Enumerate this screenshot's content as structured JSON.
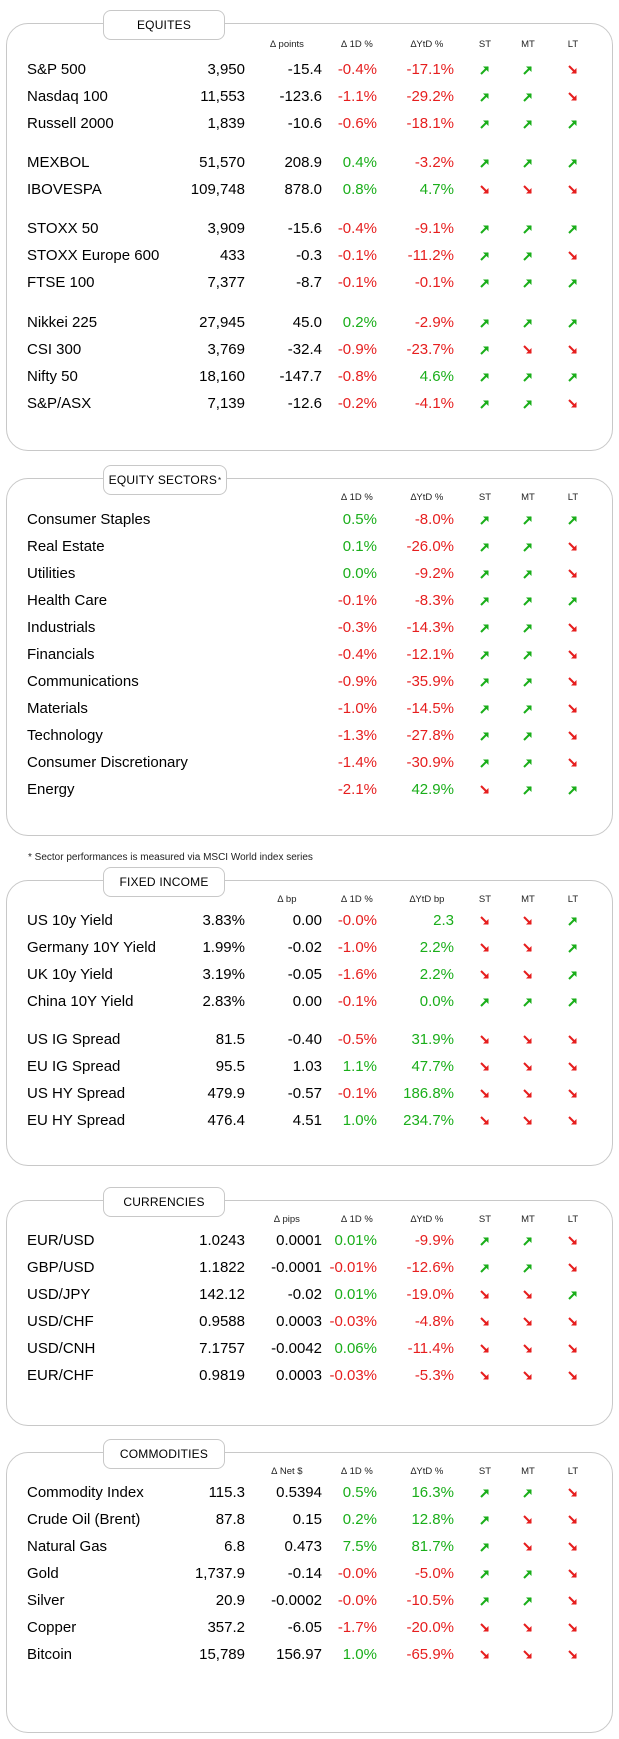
{
  "colors": {
    "up": "#1aae1a",
    "down": "#e61e1e",
    "border": "#c8c8c8"
  },
  "equities": {
    "title": "EQUITES",
    "headers": {
      "delta": "∆ points",
      "d1": "∆ 1D %",
      "ytd": "∆YtD %",
      "st": "ST",
      "mt": "MT",
      "lt": "LT"
    },
    "rows": [
      {
        "name": "S&P 500",
        "level": "3,950",
        "delta": "-15.4",
        "d1": "-0.4%",
        "ytd": "-17.1%",
        "st": "up",
        "mt": "up",
        "lt": "down"
      },
      {
        "name": "Nasdaq 100",
        "level": "11,553",
        "delta": "-123.6",
        "d1": "-1.1%",
        "ytd": "-29.2%",
        "st": "up",
        "mt": "up",
        "lt": "down"
      },
      {
        "name": "Russell 2000",
        "level": "1,839",
        "delta": "-10.6",
        "d1": "-0.6%",
        "ytd": "-18.1%",
        "st": "up",
        "mt": "up",
        "lt": "up"
      },
      {
        "name": "MEXBOL",
        "level": "51,570",
        "delta": "208.9",
        "d1": "0.4%",
        "ytd": "-3.2%",
        "st": "up",
        "mt": "up",
        "lt": "up"
      },
      {
        "name": "IBOVESPA",
        "level": "109,748",
        "delta": "878.0",
        "d1": "0.8%",
        "ytd": "4.7%",
        "st": "down",
        "mt": "down",
        "lt": "down"
      },
      {
        "name": "STOXX 50",
        "level": "3,909",
        "delta": "-15.6",
        "d1": "-0.4%",
        "ytd": "-9.1%",
        "st": "up",
        "mt": "up",
        "lt": "up"
      },
      {
        "name": "STOXX Europe 600",
        "level": "433",
        "delta": "-0.3",
        "d1": "-0.1%",
        "ytd": "-11.2%",
        "st": "up",
        "mt": "up",
        "lt": "down"
      },
      {
        "name": "FTSE 100",
        "level": "7,377",
        "delta": "-8.7",
        "d1": "-0.1%",
        "ytd": "-0.1%",
        "st": "up",
        "mt": "up",
        "lt": "up"
      },
      {
        "name": "Nikkei 225",
        "level": "27,945",
        "delta": "45.0",
        "d1": "0.2%",
        "ytd": "-2.9%",
        "st": "up",
        "mt": "up",
        "lt": "up"
      },
      {
        "name": "CSI 300",
        "level": "3,769",
        "delta": "-32.4",
        "d1": "-0.9%",
        "ytd": "-23.7%",
        "st": "up",
        "mt": "down",
        "lt": "down"
      },
      {
        "name": "Nifty  50",
        "level": "18,160",
        "delta": "-147.7",
        "d1": "-0.8%",
        "ytd": "4.6%",
        "st": "up",
        "mt": "up",
        "lt": "up"
      },
      {
        "name": "S&P/ASX",
        "level": "7,139",
        "delta": "-12.6",
        "d1": "-0.2%",
        "ytd": "-4.1%",
        "st": "up",
        "mt": "up",
        "lt": "down"
      }
    ]
  },
  "sectors": {
    "title": "EQUITY SECTORS",
    "title_mark": "*",
    "headers": {
      "d1": "∆ 1D %",
      "ytd": "∆YtD %",
      "st": "ST",
      "mt": "MT",
      "lt": "LT"
    },
    "note": "* Sector performances is measured via MSCI World index series",
    "rows": [
      {
        "name": "Consumer Staples",
        "d1": "0.5%",
        "ytd": "-8.0%",
        "st": "up",
        "mt": "up",
        "lt": "up"
      },
      {
        "name": "Real Estate",
        "d1": "0.1%",
        "ytd": "-26.0%",
        "st": "up",
        "mt": "up",
        "lt": "down"
      },
      {
        "name": "Utilities",
        "d1": "0.0%",
        "ytd": "-9.2%",
        "st": "up",
        "mt": "up",
        "lt": "down"
      },
      {
        "name": "Health Care",
        "d1": "-0.1%",
        "ytd": "-8.3%",
        "st": "up",
        "mt": "up",
        "lt": "up"
      },
      {
        "name": "Industrials",
        "d1": "-0.3%",
        "ytd": "-14.3%",
        "st": "up",
        "mt": "up",
        "lt": "down"
      },
      {
        "name": "Financials",
        "d1": "-0.4%",
        "ytd": "-12.1%",
        "st": "up",
        "mt": "up",
        "lt": "down"
      },
      {
        "name": "Communications",
        "d1": "-0.9%",
        "ytd": "-35.9%",
        "st": "up",
        "mt": "up",
        "lt": "down"
      },
      {
        "name": "Materials",
        "d1": "-1.0%",
        "ytd": "-14.5%",
        "st": "up",
        "mt": "up",
        "lt": "down"
      },
      {
        "name": "Technology",
        "d1": "-1.3%",
        "ytd": "-27.8%",
        "st": "up",
        "mt": "up",
        "lt": "down"
      },
      {
        "name": "Consumer Discretionary",
        "d1": "-1.4%",
        "ytd": "-30.9%",
        "st": "up",
        "mt": "up",
        "lt": "down"
      },
      {
        "name": "Energy",
        "d1": "-2.1%",
        "ytd": "42.9%",
        "st": "down",
        "mt": "up",
        "lt": "up"
      }
    ]
  },
  "fixed_income": {
    "title": "FIXED INCOME",
    "headers": {
      "delta": "∆ bp",
      "d1": "∆ 1D %",
      "ytd": "∆YtD bp",
      "st": "ST",
      "mt": "MT",
      "lt": "LT"
    },
    "rows": [
      {
        "name": "US 10y Yield",
        "level": "3.83%",
        "delta": "0.00",
        "d1": "-0.0%",
        "ytd": "2.3",
        "st": "down",
        "mt": "down",
        "lt": "up"
      },
      {
        "name": "Germany 10Y Yield",
        "level": "1.99%",
        "delta": "-0.02",
        "d1": "-1.0%",
        "ytd": "2.2%",
        "st": "down",
        "mt": "down",
        "lt": "up"
      },
      {
        "name": "UK 10y Yield",
        "level": "3.19%",
        "delta": "-0.05",
        "d1": "-1.6%",
        "ytd": "2.2%",
        "st": "down",
        "mt": "down",
        "lt": "up"
      },
      {
        "name": "China 10Y Yield",
        "level": "2.83%",
        "delta": "0.00",
        "d1": "-0.1%",
        "ytd": "0.0%",
        "st": "up",
        "mt": "up",
        "lt": "up"
      },
      {
        "name": "US IG Spread",
        "level": "81.5",
        "delta": "-0.40",
        "d1": "-0.5%",
        "ytd": "31.9%",
        "st": "down",
        "mt": "down",
        "lt": "down"
      },
      {
        "name": "EU IG Spread",
        "level": "95.5",
        "delta": "1.03",
        "d1": "1.1%",
        "ytd": "47.7%",
        "st": "down",
        "mt": "down",
        "lt": "down"
      },
      {
        "name": "US HY Spread",
        "level": "479.9",
        "delta": "-0.57",
        "d1": "-0.1%",
        "ytd": "186.8%",
        "st": "down",
        "mt": "down",
        "lt": "down"
      },
      {
        "name": "EU HY Spread",
        "level": "476.4",
        "delta": "4.51",
        "d1": "1.0%",
        "ytd": "234.7%",
        "st": "down",
        "mt": "down",
        "lt": "down"
      }
    ]
  },
  "currencies": {
    "title": "CURRENCIES",
    "headers": {
      "delta": "∆ pips",
      "d1": "∆ 1D %",
      "ytd": "∆YtD %",
      "st": "ST",
      "mt": "MT",
      "lt": "LT"
    },
    "rows": [
      {
        "name": "EUR/USD",
        "level": "1.0243",
        "delta": "0.0001",
        "d1": "0.01%",
        "ytd": "-9.9%",
        "st": "up",
        "mt": "up",
        "lt": "down"
      },
      {
        "name": "GBP/USD",
        "level": "1.1822",
        "delta": "-0.0001",
        "d1": "-0.01%",
        "ytd": "-12.6%",
        "st": "up",
        "mt": "up",
        "lt": "down"
      },
      {
        "name": "USD/JPY",
        "level": "142.12",
        "delta": "-0.02",
        "d1": "0.01%",
        "ytd": "-19.0%",
        "st": "down",
        "mt": "down",
        "lt": "up"
      },
      {
        "name": "USD/CHF",
        "level": "0.9588",
        "delta": "0.0003",
        "d1": "-0.03%",
        "ytd": "-4.8%",
        "st": "down",
        "mt": "down",
        "lt": "down"
      },
      {
        "name": "USD/CNH",
        "level": "7.1757",
        "delta": "-0.0042",
        "d1": "0.06%",
        "ytd": "-11.4%",
        "st": "down",
        "mt": "down",
        "lt": "down"
      },
      {
        "name": "EUR/CHF",
        "level": "0.9819",
        "delta": "0.0003",
        "d1": "-0.03%",
        "ytd": "-5.3%",
        "st": "down",
        "mt": "down",
        "lt": "down"
      }
    ]
  },
  "commodities": {
    "title": "COMMODITIES",
    "headers": {
      "delta": "∆ Net $",
      "d1": "∆ 1D %",
      "ytd": "∆YtD %",
      "st": "ST",
      "mt": "MT",
      "lt": "LT"
    },
    "rows": [
      {
        "name": "Commodity Index",
        "level": "115.3",
        "delta": "0.5394",
        "d1": "0.5%",
        "ytd": "16.3%",
        "st": "up",
        "mt": "up",
        "lt": "down"
      },
      {
        "name": "Crude Oil (Brent)",
        "level": "87.8",
        "delta": "0.15",
        "d1": "0.2%",
        "ytd": "12.8%",
        "st": "up",
        "mt": "down",
        "lt": "down"
      },
      {
        "name": "Natural Gas",
        "level": "6.8",
        "delta": "0.473",
        "d1": "7.5%",
        "ytd": "81.7%",
        "st": "up",
        "mt": "down",
        "lt": "down"
      },
      {
        "name": "Gold",
        "level": "1,737.9",
        "delta": "-0.14",
        "d1": "-0.0%",
        "ytd": "-5.0%",
        "st": "up",
        "mt": "up",
        "lt": "down"
      },
      {
        "name": "Silver",
        "level": "20.9",
        "delta": "-0.0002",
        "d1": "-0.0%",
        "ytd": "-10.5%",
        "st": "up",
        "mt": "up",
        "lt": "down"
      },
      {
        "name": "Copper",
        "level": "357.2",
        "delta": "-6.05",
        "d1": "-1.7%",
        "ytd": "-20.0%",
        "st": "down",
        "mt": "down",
        "lt": "down"
      },
      {
        "name": "Bitcoin",
        "level": "15,789",
        "delta": "156.97",
        "d1": "1.0%",
        "ytd": "-65.9%",
        "st": "down",
        "mt": "down",
        "lt": "down"
      }
    ]
  }
}
